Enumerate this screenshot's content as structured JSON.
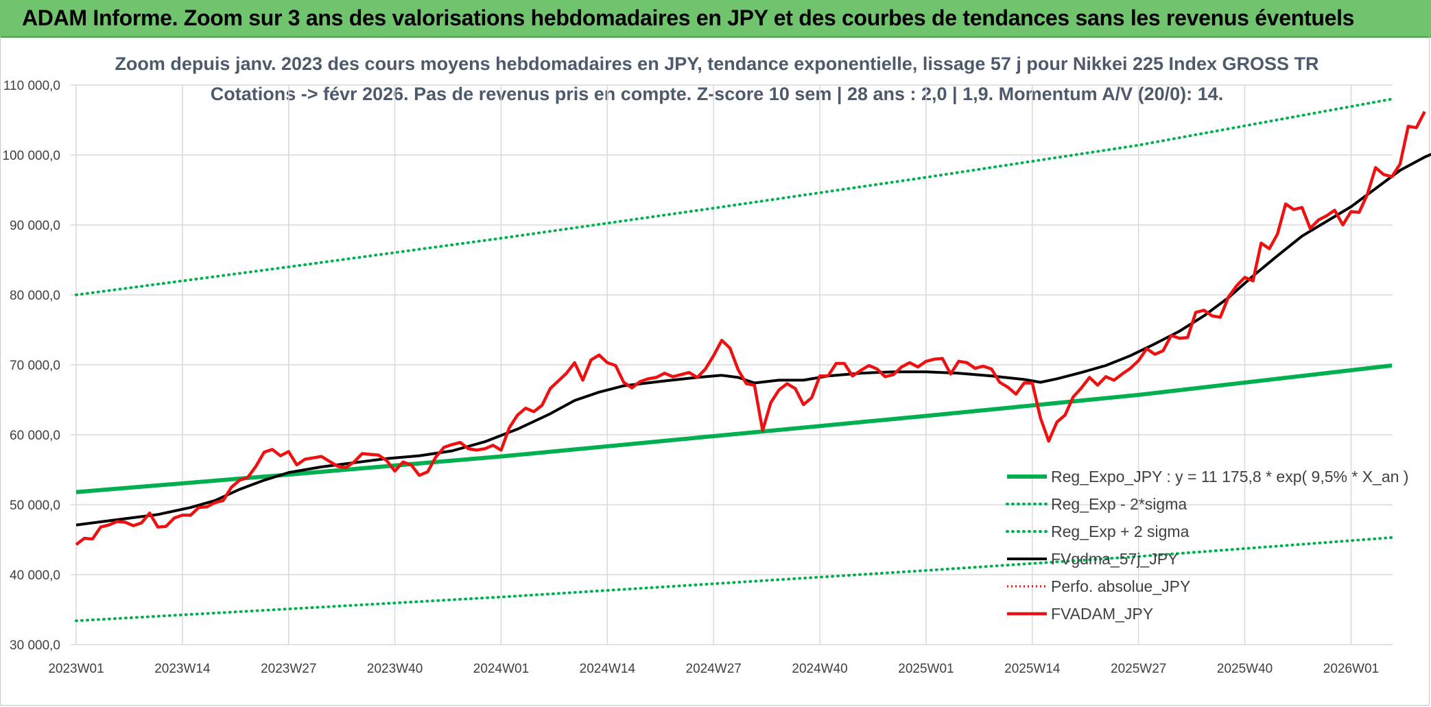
{
  "header": {
    "title": "ADAM Informe. Zoom sur 3 ans des valorisations hebdomadaires en JPY et des courbes de tendances sans les revenus éventuels"
  },
  "colors": {
    "banner": "#6fc46d",
    "reg_expo": "#00b050",
    "sigma": "#00b050",
    "fvgdma": "#000000",
    "perfo": "#ff0000",
    "fvadam": "#ee1111",
    "grid": "#d9d9d9"
  },
  "chart_data": {
    "type": "line",
    "title_line1": "Zoom depuis janv. 2023 des cours moyens hebdomadaires en JPY, tendance exponentielle, lissage 57 j pour Nikkei 225 Index GROSS TR",
    "title_line2": "Cotations -> févr 2026. Pas de revenus pris en compte. Z-score 10 sem | 28 ans : 2,0 | 1,9. Momentum A/V (20/0): 14.",
    "ylim": [
      30000,
      110000
    ],
    "y_ticks": [
      30000,
      40000,
      50000,
      60000,
      70000,
      80000,
      90000,
      100000,
      110000
    ],
    "y_tick_labels": [
      "30 000,0",
      "40 000,0",
      "50 000,0",
      "60 000,0",
      "70 000,0",
      "80 000,0",
      "90 000,0",
      "100 000,0",
      "110 000,0"
    ],
    "grid": true,
    "week_count": 162,
    "x_tick_labels": [
      "2023W01",
      "2023W14",
      "2023W27",
      "2023W40",
      "2024W01",
      "2024W14",
      "2024W27",
      "2024W40",
      "2025W01",
      "2025W14",
      "2025W27",
      "2025W40",
      "2026W01"
    ],
    "x_tick_weeks": [
      0,
      13,
      26,
      39,
      52,
      65,
      78,
      91,
      104,
      117,
      130,
      143,
      156
    ],
    "legend_position": "bottom-right",
    "series": [
      {
        "name": "Reg_Expo_JPY : y = 11 175,8 * exp( 9,5% *  X_an )",
        "style": "solid-thick",
        "points": [
          [
            0,
            51800
          ],
          [
            26,
            54300
          ],
          [
            52,
            56900
          ],
          [
            78,
            59800
          ],
          [
            104,
            62700
          ],
          [
            130,
            65700
          ],
          [
            161,
            69900
          ]
        ]
      },
      {
        "name": "Reg_Exp - 2*sigma",
        "style": "dotted",
        "points": [
          [
            0,
            33400
          ],
          [
            26,
            35100
          ],
          [
            52,
            36800
          ],
          [
            78,
            38700
          ],
          [
            104,
            40600
          ],
          [
            130,
            42600
          ],
          [
            161,
            45300
          ]
        ]
      },
      {
        "name": "Reg_Exp + 2 sigma",
        "style": "dotted",
        "points": [
          [
            0,
            80000
          ],
          [
            26,
            84000
          ],
          [
            52,
            88100
          ],
          [
            78,
            92400
          ],
          [
            104,
            96800
          ],
          [
            130,
            101400
          ],
          [
            161,
            108000
          ]
        ]
      },
      {
        "name": "FVgdma_57j_JPY",
        "style": "solid",
        "points": [
          [
            0,
            47100
          ],
          [
            6,
            48000
          ],
          [
            10,
            48600
          ],
          [
            14,
            49600
          ],
          [
            17,
            50600
          ],
          [
            20,
            52200
          ],
          [
            23,
            53500
          ],
          [
            26,
            54600
          ],
          [
            30,
            55400
          ],
          [
            34,
            56000
          ],
          [
            38,
            56600
          ],
          [
            42,
            57000
          ],
          [
            46,
            57700
          ],
          [
            50,
            59000
          ],
          [
            54,
            60800
          ],
          [
            58,
            63000
          ],
          [
            61,
            64900
          ],
          [
            64,
            66100
          ],
          [
            67,
            67000
          ],
          [
            72,
            67700
          ],
          [
            76,
            68200
          ],
          [
            79,
            68500
          ],
          [
            81,
            68200
          ],
          [
            83,
            67400
          ],
          [
            86,
            67800
          ],
          [
            89,
            67800
          ],
          [
            92,
            68400
          ],
          [
            96,
            68800
          ],
          [
            100,
            69000
          ],
          [
            104,
            69000
          ],
          [
            108,
            68800
          ],
          [
            112,
            68400
          ],
          [
            116,
            67900
          ],
          [
            118,
            67500
          ],
          [
            120,
            68000
          ],
          [
            123,
            68900
          ],
          [
            126,
            69900
          ],
          [
            129,
            71300
          ],
          [
            132,
            73000
          ],
          [
            135,
            74800
          ],
          [
            138,
            77000
          ],
          [
            141,
            79600
          ],
          [
            144,
            82700
          ],
          [
            147,
            85600
          ],
          [
            150,
            88400
          ],
          [
            153,
            90500
          ],
          [
            156,
            92600
          ],
          [
            159,
            95200
          ],
          [
            162,
            97800
          ],
          [
            165,
            99700
          ],
          [
            168,
            101200
          ]
        ]
      },
      {
        "name": "Perfo. absolue_JPY",
        "style": "dotted-red",
        "points": []
      },
      {
        "name": "FVADAM_JPY",
        "style": "solid-thick-red",
        "points": [
          [
            0,
            44300
          ],
          [
            1,
            45200
          ],
          [
            2,
            45100
          ],
          [
            3,
            46800
          ],
          [
            4,
            47100
          ],
          [
            5,
            47600
          ],
          [
            6,
            47500
          ],
          [
            7,
            47000
          ],
          [
            8,
            47400
          ],
          [
            9,
            48800
          ],
          [
            10,
            46800
          ],
          [
            11,
            46900
          ],
          [
            12,
            48100
          ],
          [
            13,
            48500
          ],
          [
            14,
            48500
          ],
          [
            15,
            49600
          ],
          [
            16,
            49700
          ],
          [
            17,
            50300
          ],
          [
            18,
            50600
          ],
          [
            19,
            52500
          ],
          [
            20,
            53500
          ],
          [
            21,
            53900
          ],
          [
            22,
            55500
          ],
          [
            23,
            57500
          ],
          [
            24,
            57900
          ],
          [
            25,
            57000
          ],
          [
            26,
            57600
          ],
          [
            27,
            55700
          ],
          [
            28,
            56500
          ],
          [
            29,
            56700
          ],
          [
            30,
            56900
          ],
          [
            31,
            56200
          ],
          [
            32,
            55500
          ],
          [
            33,
            55300
          ],
          [
            34,
            56100
          ],
          [
            35,
            57300
          ],
          [
            36,
            57200
          ],
          [
            37,
            57100
          ],
          [
            38,
            56300
          ],
          [
            39,
            54800
          ],
          [
            40,
            56100
          ],
          [
            41,
            55700
          ],
          [
            42,
            54200
          ],
          [
            43,
            54700
          ],
          [
            44,
            56800
          ],
          [
            45,
            58200
          ],
          [
            46,
            58600
          ],
          [
            47,
            58900
          ],
          [
            48,
            58000
          ],
          [
            49,
            57800
          ],
          [
            50,
            58000
          ],
          [
            51,
            58500
          ],
          [
            52,
            57800
          ],
          [
            53,
            61000
          ],
          [
            54,
            62800
          ],
          [
            55,
            63800
          ],
          [
            56,
            63300
          ],
          [
            57,
            64200
          ],
          [
            58,
            66600
          ],
          [
            59,
            67700
          ],
          [
            60,
            68800
          ],
          [
            61,
            70300
          ],
          [
            62,
            67800
          ],
          [
            63,
            70700
          ],
          [
            64,
            71400
          ],
          [
            65,
            70300
          ],
          [
            66,
            69900
          ],
          [
            67,
            67500
          ],
          [
            68,
            66700
          ],
          [
            69,
            67600
          ],
          [
            70,
            68000
          ],
          [
            71,
            68200
          ],
          [
            72,
            68800
          ],
          [
            73,
            68300
          ],
          [
            74,
            68600
          ],
          [
            75,
            68900
          ],
          [
            76,
            68200
          ],
          [
            77,
            69400
          ],
          [
            78,
            71300
          ],
          [
            79,
            73500
          ],
          [
            80,
            72400
          ],
          [
            81,
            69300
          ],
          [
            82,
            67300
          ],
          [
            83,
            67100
          ],
          [
            84,
            60600
          ],
          [
            85,
            64600
          ],
          [
            86,
            66400
          ],
          [
            87,
            67300
          ],
          [
            88,
            66600
          ],
          [
            89,
            64300
          ],
          [
            90,
            65300
          ],
          [
            91,
            68400
          ],
          [
            92,
            68400
          ],
          [
            93,
            70200
          ],
          [
            94,
            70200
          ],
          [
            95,
            68400
          ],
          [
            96,
            69200
          ],
          [
            97,
            69900
          ],
          [
            98,
            69400
          ],
          [
            99,
            68300
          ],
          [
            100,
            68600
          ],
          [
            101,
            69700
          ],
          [
            102,
            70300
          ],
          [
            103,
            69700
          ],
          [
            104,
            70500
          ],
          [
            105,
            70800
          ],
          [
            106,
            70900
          ],
          [
            107,
            68700
          ],
          [
            108,
            70500
          ],
          [
            109,
            70300
          ],
          [
            110,
            69500
          ],
          [
            111,
            69800
          ],
          [
            112,
            69400
          ],
          [
            113,
            67500
          ],
          [
            114,
            66800
          ],
          [
            115,
            65800
          ],
          [
            116,
            67400
          ],
          [
            117,
            67400
          ],
          [
            118,
            62400
          ],
          [
            119,
            59100
          ],
          [
            120,
            61800
          ],
          [
            121,
            62800
          ],
          [
            122,
            65400
          ],
          [
            123,
            66700
          ],
          [
            124,
            68200
          ],
          [
            125,
            67100
          ],
          [
            126,
            68300
          ],
          [
            127,
            67800
          ],
          [
            128,
            68700
          ],
          [
            129,
            69500
          ],
          [
            130,
            70600
          ],
          [
            131,
            72300
          ],
          [
            132,
            71500
          ],
          [
            133,
            72000
          ],
          [
            134,
            74200
          ],
          [
            135,
            73800
          ],
          [
            136,
            73900
          ],
          [
            137,
            77500
          ],
          [
            138,
            77800
          ],
          [
            139,
            77000
          ],
          [
            140,
            76800
          ],
          [
            141,
            79700
          ],
          [
            142,
            81300
          ],
          [
            143,
            82500
          ],
          [
            144,
            82000
          ],
          [
            145,
            87400
          ],
          [
            146,
            86600
          ],
          [
            147,
            88700
          ],
          [
            148,
            93000
          ],
          [
            149,
            92200
          ],
          [
            150,
            92500
          ],
          [
            151,
            89500
          ],
          [
            152,
            90700
          ],
          [
            153,
            91300
          ],
          [
            154,
            92100
          ],
          [
            155,
            90000
          ],
          [
            156,
            91900
          ],
          [
            157,
            91800
          ],
          [
            158,
            94400
          ],
          [
            159,
            98200
          ],
          [
            160,
            97200
          ],
          [
            161,
            96900
          ],
          [
            162,
            98700
          ],
          [
            163,
            104100
          ],
          [
            164,
            103900
          ],
          [
            165,
            106200
          ]
        ]
      }
    ]
  }
}
